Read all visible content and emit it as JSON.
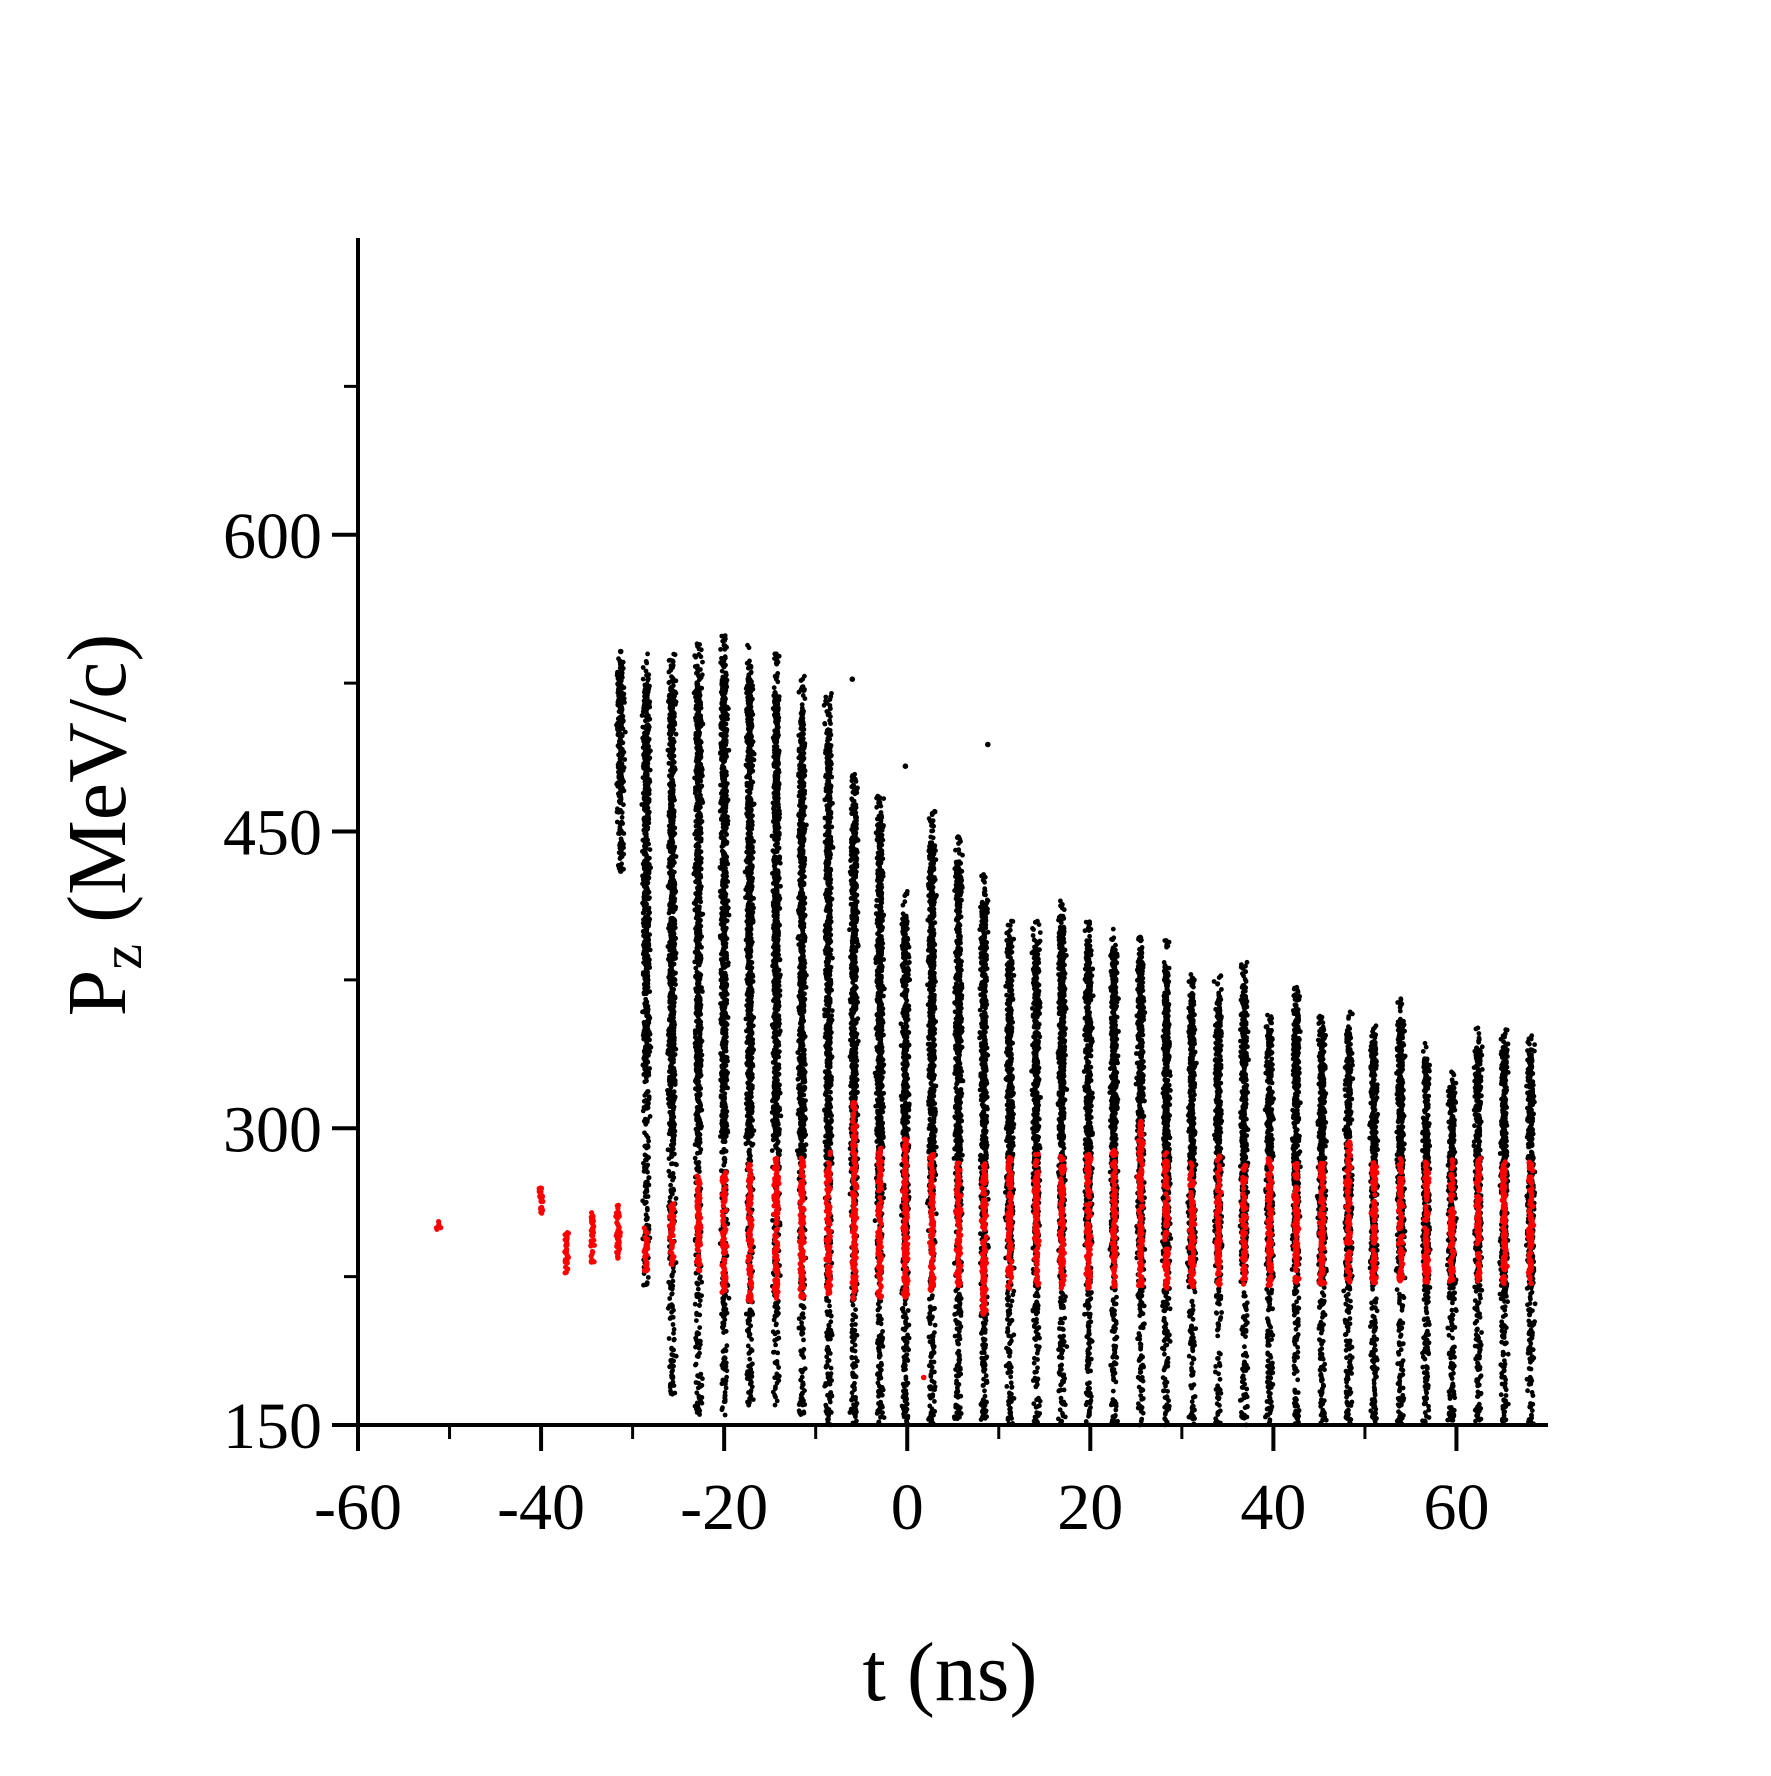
{
  "chart_data": {
    "type": "scatter",
    "title": "",
    "xlabel": "t (ns)",
    "ylabel": {
      "main": "P",
      "subscript": "z",
      "unit": " (MeV/c)"
    },
    "xlim": [
      -60,
      70
    ],
    "ylim": [
      150,
      750
    ],
    "x_ticks": [
      -60,
      -40,
      -20,
      0,
      20,
      40,
      60
    ],
    "y_ticks": [
      150,
      300,
      450,
      600
    ],
    "x_minor_ticks": [
      -50,
      -30,
      -10,
      10,
      30,
      50
    ],
    "y_minor_ticks": [
      225,
      375,
      525,
      675
    ],
    "grid": false,
    "legend": "none",
    "colors": {
      "series_black": "#000000",
      "series_red": "#ff0000",
      "axis": "#000000"
    },
    "series": [
      {
        "color": "#000000",
        "description": "bunch clusters: [center t (ns), p_min, p_max (MeV/c)]",
        "bunches": [
          [
            -31.3,
            430,
            540
          ],
          [
            -28.5,
            220,
            540
          ],
          [
            -25.7,
            165,
            540
          ],
          [
            -22.8,
            155,
            545
          ],
          [
            -20.0,
            155,
            550
          ],
          [
            -17.2,
            160,
            548
          ],
          [
            -14.3,
            160,
            540
          ],
          [
            -11.5,
            155,
            530
          ],
          [
            -8.6,
            150,
            520
          ],
          [
            -5.8,
            150,
            480
          ],
          [
            -3.0,
            150,
            470
          ],
          [
            -0.2,
            150,
            420
          ],
          [
            2.7,
            150,
            460
          ],
          [
            5.6,
            150,
            450
          ],
          [
            8.4,
            150,
            430
          ],
          [
            11.2,
            150,
            405
          ],
          [
            14.1,
            150,
            405
          ],
          [
            16.9,
            150,
            415
          ],
          [
            19.8,
            150,
            405
          ],
          [
            22.6,
            150,
            404
          ],
          [
            25.5,
            150,
            398
          ],
          [
            28.3,
            150,
            395
          ],
          [
            31.1,
            150,
            380
          ],
          [
            34.0,
            150,
            378
          ],
          [
            36.8,
            150,
            384
          ],
          [
            39.6,
            150,
            360
          ],
          [
            42.5,
            150,
            372
          ],
          [
            45.3,
            150,
            358
          ],
          [
            48.2,
            150,
            360
          ],
          [
            51.0,
            150,
            352
          ],
          [
            53.9,
            150,
            366
          ],
          [
            56.7,
            150,
            345
          ],
          [
            59.5,
            150,
            330
          ],
          [
            62.4,
            150,
            352
          ],
          [
            65.2,
            150,
            350
          ],
          [
            68.1,
            150,
            347
          ]
        ],
        "outliers": [
          [
            8.8,
            494
          ],
          [
            3.0,
            460
          ],
          [
            -0.2,
            483
          ],
          [
            5.6,
            447
          ],
          [
            -6.0,
            527
          ],
          [
            -31.3,
            541
          ],
          [
            -31.3,
            430
          ]
        ]
      },
      {
        "color": "#ff0000",
        "description": "selected particles: [center t (ns), p_min, p_max (MeV/c)]",
        "bunches": [
          [
            -51.2,
            248,
            253
          ],
          [
            -40.0,
            256,
            270
          ],
          [
            -37.2,
            226,
            248
          ],
          [
            -34.4,
            232,
            258
          ],
          [
            -31.6,
            234,
            264
          ],
          [
            -28.5,
            228,
            250
          ],
          [
            -25.7,
            230,
            262
          ],
          [
            -22.8,
            228,
            276
          ],
          [
            -20.0,
            217,
            278
          ],
          [
            -17.2,
            212,
            282
          ],
          [
            -14.3,
            214,
            285
          ],
          [
            -11.5,
            214,
            285
          ],
          [
            -8.6,
            215,
            288
          ],
          [
            -5.8,
            212,
            314
          ],
          [
            -3.0,
            214,
            290
          ],
          [
            -0.2,
            214,
            295
          ],
          [
            2.7,
            218,
            288
          ],
          [
            5.6,
            220,
            283
          ],
          [
            8.4,
            206,
            283
          ],
          [
            11.2,
            219,
            286
          ],
          [
            14.1,
            220,
            287
          ],
          [
            16.9,
            219,
            286
          ],
          [
            19.8,
            218,
            287
          ],
          [
            22.6,
            220,
            289
          ],
          [
            25.5,
            220,
            304
          ],
          [
            28.3,
            219,
            288
          ],
          [
            31.1,
            220,
            283
          ],
          [
            34.0,
            220,
            286
          ],
          [
            36.8,
            221,
            283
          ],
          [
            39.6,
            220,
            285
          ],
          [
            42.5,
            221,
            283
          ],
          [
            45.3,
            221,
            283
          ],
          [
            48.2,
            222,
            294
          ],
          [
            51.0,
            222,
            283
          ],
          [
            53.9,
            222,
            285
          ],
          [
            56.7,
            222,
            283
          ],
          [
            59.5,
            222,
            285
          ],
          [
            62.4,
            222,
            285
          ],
          [
            65.2,
            221,
            283
          ],
          [
            68.1,
            221,
            283
          ]
        ],
        "outliers": [
          [
            1.8,
            174
          ],
          [
            8.6,
            208
          ]
        ]
      }
    ]
  }
}
